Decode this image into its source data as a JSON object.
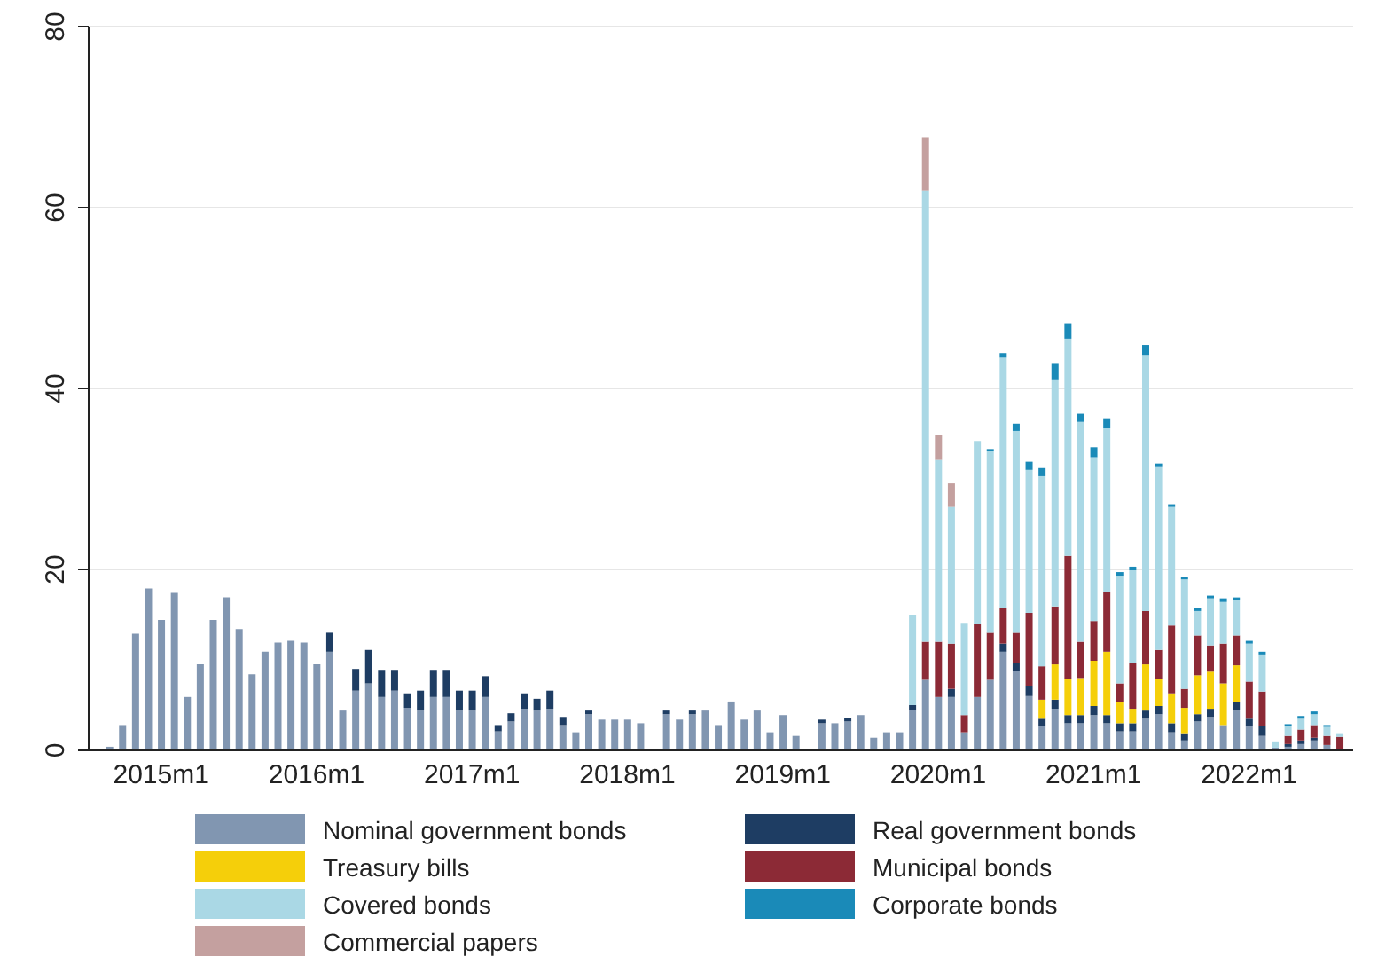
{
  "chart_data": {
    "type": "bar",
    "stacked": true,
    "categories": [
      null,
      null,
      null,
      null,
      "2015m1",
      null,
      null,
      null,
      null,
      null,
      null,
      null,
      null,
      null,
      null,
      null,
      "2016m1",
      null,
      null,
      null,
      null,
      null,
      null,
      null,
      null,
      null,
      null,
      null,
      "2017m1",
      null,
      null,
      null,
      null,
      null,
      null,
      null,
      null,
      null,
      null,
      null,
      "2018m1",
      null,
      null,
      null,
      null,
      null,
      null,
      null,
      null,
      null,
      null,
      null,
      "2019m1",
      null,
      null,
      null,
      null,
      null,
      null,
      null,
      null,
      null,
      null,
      null,
      "2020m1",
      null,
      null,
      null,
      null,
      null,
      null,
      null,
      null,
      null,
      null,
      null,
      "2021m1",
      null,
      null,
      null,
      null,
      null,
      null,
      null,
      null,
      null,
      null,
      null,
      "2022m1",
      null,
      null,
      null,
      null,
      null,
      null,
      null
    ],
    "series": [
      {
        "name": "Nominal government bonds",
        "color": "#8196b1",
        "values": [
          0.4,
          2.8,
          12.9,
          17.9,
          14.4,
          17.4,
          5.9,
          9.5,
          14.4,
          16.9,
          13.4,
          8.4,
          10.9,
          11.9,
          12.1,
          11.9,
          9.5,
          10.9,
          4.4,
          6.6,
          7.4,
          5.9,
          6.6,
          4.7,
          4.4,
          5.9,
          5.9,
          4.4,
          4.4,
          5.9,
          2.1,
          3.2,
          4.6,
          4.4,
          4.6,
          2.8,
          2.0,
          4.0,
          3.4,
          3.4,
          3.4,
          3.0,
          0,
          4.0,
          3.4,
          4.0,
          4.4,
          2.8,
          5.4,
          3.4,
          4.4,
          2.0,
          3.9,
          1.6,
          0,
          3.0,
          3.0,
          3.2,
          3.9,
          1.4,
          2.0,
          2.0,
          4.5,
          7.8,
          5.9,
          5.9,
          2.0,
          5.9,
          7.8,
          10.9,
          8.8,
          6.0,
          2.7,
          4.6,
          3.0,
          3.0,
          3.9,
          3.0,
          2.1,
          2.1,
          3.5,
          4.0,
          2.0,
          1.1,
          3.2,
          3.7,
          2.8,
          4.4,
          2.7,
          1.6,
          0.3,
          0.4,
          0.7,
          1.1,
          0.6,
          0
        ]
      },
      {
        "name": "Real government bonds",
        "color": "#1e3d63",
        "values": [
          0,
          0,
          0,
          0,
          0,
          0,
          0,
          0,
          0,
          0,
          0,
          0,
          0,
          0,
          0,
          0,
          0,
          2.1,
          0,
          2.4,
          3.7,
          3.0,
          2.3,
          1.6,
          2.2,
          3.0,
          3.0,
          2.2,
          2.2,
          2.3,
          0.7,
          0.9,
          1.7,
          1.3,
          2.0,
          0.9,
          0,
          0.4,
          0,
          0,
          0,
          0,
          0,
          0.4,
          0,
          0.4,
          0,
          0,
          0,
          0,
          0,
          0,
          0,
          0,
          0,
          0.4,
          0,
          0.4,
          0,
          0,
          0,
          0,
          0.5,
          0,
          0,
          0.9,
          0,
          0,
          0,
          0.9,
          0.9,
          1.1,
          0.8,
          1.0,
          0.9,
          0.9,
          1.0,
          0.9,
          0.9,
          0.9,
          0.9,
          0.9,
          1.0,
          0.8,
          0.8,
          0.9,
          0,
          0.9,
          0.8,
          1.1,
          0,
          0.3,
          0.4,
          0.3,
          0,
          0
        ]
      },
      {
        "name": "Treasury bills",
        "color": "#f5cf0a",
        "values": [
          0,
          0,
          0,
          0,
          0,
          0,
          0,
          0,
          0,
          0,
          0,
          0,
          0,
          0,
          0,
          0,
          0,
          0,
          0,
          0,
          0,
          0,
          0,
          0,
          0,
          0,
          0,
          0,
          0,
          0,
          0,
          0,
          0,
          0,
          0,
          0,
          0,
          0,
          0,
          0,
          0,
          0,
          0,
          0,
          0,
          0,
          0,
          0,
          0,
          0,
          0,
          0,
          0,
          0,
          0,
          0,
          0,
          0,
          0,
          0,
          0,
          0,
          0,
          0,
          0,
          0,
          0,
          0,
          0,
          0,
          0,
          0,
          2.1,
          3.9,
          4.0,
          4.1,
          5.0,
          7.0,
          2.3,
          1.6,
          5.1,
          3.0,
          3.3,
          2.8,
          4.3,
          4.1,
          4.6,
          4.1,
          0,
          0,
          0,
          0,
          0,
          0,
          0,
          0
        ]
      },
      {
        "name": "Municipal bonds",
        "color": "#8c2a36",
        "values": [
          0,
          0,
          0,
          0,
          0,
          0,
          0,
          0,
          0,
          0,
          0,
          0,
          0,
          0,
          0,
          0,
          0,
          0,
          0,
          0,
          0,
          0,
          0,
          0,
          0,
          0,
          0,
          0,
          0,
          0,
          0,
          0,
          0,
          0,
          0,
          0,
          0,
          0,
          0,
          0,
          0,
          0,
          0,
          0,
          0,
          0,
          0,
          0,
          0,
          0,
          0,
          0,
          0,
          0,
          0,
          0,
          0,
          0,
          0,
          0,
          0,
          0,
          0,
          4.2,
          6.1,
          5.0,
          1.9,
          8.1,
          5.2,
          3.9,
          3.3,
          8.1,
          3.7,
          6.4,
          13.6,
          4.0,
          4.4,
          6.6,
          2.1,
          5.1,
          5.9,
          3.2,
          7.5,
          2.1,
          4.4,
          2.9,
          4.4,
          3.3,
          4.1,
          3.8,
          0,
          0.9,
          1.2,
          1.4,
          1.0,
          1.5
        ]
      },
      {
        "name": "Covered bonds",
        "color": "#aad8e5",
        "values": [
          0,
          0,
          0,
          0,
          0,
          0,
          0,
          0,
          0,
          0,
          0,
          0,
          0,
          0,
          0,
          0,
          0,
          0,
          0,
          0,
          0,
          0,
          0,
          0,
          0,
          0,
          0,
          0,
          0,
          0,
          0,
          0,
          0,
          0,
          0,
          0,
          0,
          0,
          0,
          0,
          0,
          0,
          0,
          0,
          0,
          0,
          0,
          0,
          0,
          0,
          0,
          0,
          0,
          0,
          0,
          0,
          0,
          0,
          0,
          0,
          0,
          0,
          10.0,
          49.9,
          20.1,
          15.1,
          10.2,
          20.2,
          20.1,
          27.7,
          22.3,
          15.8,
          21.0,
          25.1,
          24.0,
          24.3,
          18.1,
          18.1,
          11.9,
          10.2,
          28.3,
          20.3,
          13.1,
          12.1,
          2.7,
          5.2,
          4.6,
          3.9,
          4.2,
          4.1,
          0.6,
          1.1,
          1.2,
          1.2,
          1.0,
          0.4
        ]
      },
      {
        "name": "Corporate bonds",
        "color": "#1a8ab8",
        "values": [
          0,
          0,
          0,
          0,
          0,
          0,
          0,
          0,
          0,
          0,
          0,
          0,
          0,
          0,
          0,
          0,
          0,
          0,
          0,
          0,
          0,
          0,
          0,
          0,
          0,
          0,
          0,
          0,
          0,
          0,
          0,
          0,
          0,
          0,
          0,
          0,
          0,
          0,
          0,
          0,
          0,
          0,
          0,
          0,
          0,
          0,
          0,
          0,
          0,
          0,
          0,
          0,
          0,
          0,
          0,
          0,
          0,
          0,
          0,
          0,
          0,
          0,
          0,
          0,
          0,
          0,
          0,
          0,
          0.2,
          0.5,
          0.8,
          0.9,
          0.9,
          1.8,
          1.7,
          0.9,
          1.1,
          1.1,
          0.4,
          0.4,
          1.1,
          0.3,
          0.3,
          0.3,
          0.3,
          0.3,
          0.4,
          0.3,
          0.3,
          0.3,
          0,
          0.2,
          0.3,
          0.3,
          0.2,
          0
        ]
      },
      {
        "name": "Commercial papers",
        "color": "#c4a09f",
        "values": [
          0,
          0,
          0,
          0,
          0,
          0,
          0,
          0,
          0,
          0,
          0,
          0,
          0,
          0,
          0,
          0,
          0,
          0,
          0,
          0,
          0,
          0,
          0,
          0,
          0,
          0,
          0,
          0,
          0,
          0,
          0,
          0,
          0,
          0,
          0,
          0,
          0,
          0,
          0,
          0,
          0,
          0,
          0,
          0,
          0,
          0,
          0,
          0,
          0,
          0,
          0,
          0,
          0,
          0,
          0,
          0,
          0,
          0,
          0,
          0,
          0,
          0,
          0,
          5.8,
          2.8,
          2.6,
          0,
          0,
          0,
          0,
          0,
          0,
          0,
          0,
          0,
          0,
          0,
          0,
          0,
          0,
          0,
          0,
          0,
          0,
          0,
          0,
          0,
          0,
          0,
          0,
          0,
          0,
          0,
          0,
          0,
          0
        ]
      }
    ],
    "ylim": [
      0,
      80
    ],
    "yticks": [
      0,
      20,
      40,
      60,
      80
    ],
    "grid": "y",
    "legend": "bottom"
  }
}
